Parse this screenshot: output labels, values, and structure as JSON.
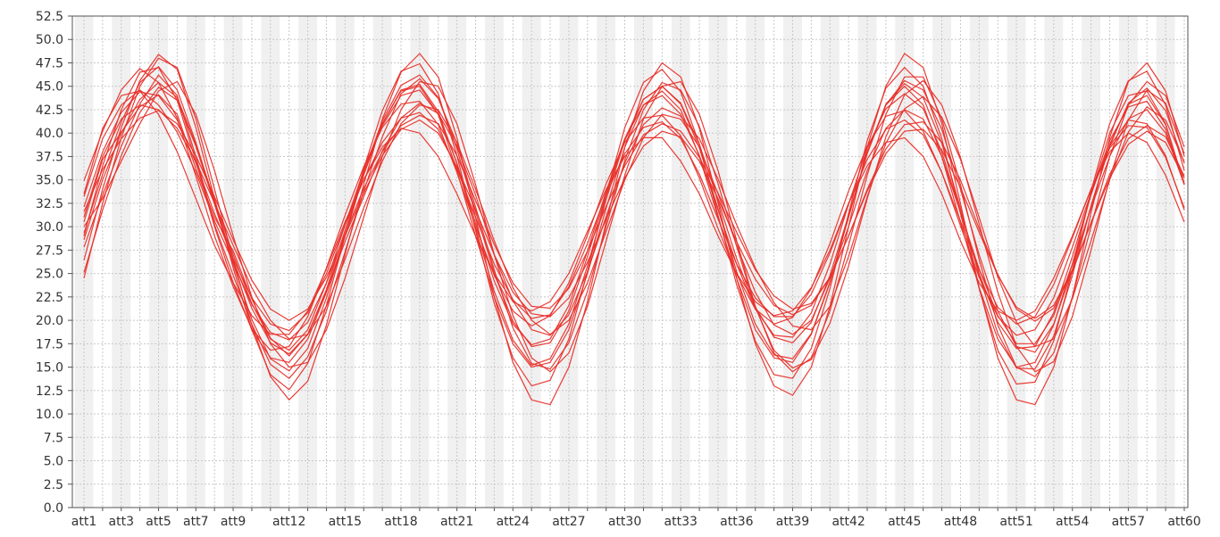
{
  "chart_data": {
    "type": "line",
    "title": "",
    "xlabel": "",
    "ylabel": "",
    "categories": [
      "att1",
      "att2",
      "att3",
      "att4",
      "att5",
      "att6",
      "att7",
      "att8",
      "att9",
      "att10",
      "att11",
      "att12",
      "att13",
      "att14",
      "att15",
      "att16",
      "att17",
      "att18",
      "att19",
      "att20",
      "att21",
      "att22",
      "att23",
      "att24",
      "att25",
      "att26",
      "att27",
      "att28",
      "att29",
      "att30",
      "att31",
      "att32",
      "att33",
      "att34",
      "att35",
      "att36",
      "att37",
      "att38",
      "att39",
      "att40",
      "att41",
      "att42",
      "att43",
      "att44",
      "att45",
      "att46",
      "att47",
      "att48",
      "att49",
      "att50",
      "att51",
      "att52",
      "att53",
      "att54",
      "att55",
      "att56",
      "att57",
      "att58",
      "att59",
      "att60"
    ],
    "x_tick_labels": [
      "att1",
      "att3",
      "att5",
      "att7",
      "att9",
      "att12",
      "att15",
      "att18",
      "att21",
      "att24",
      "att27",
      "att30",
      "att33",
      "att36",
      "att39",
      "att42",
      "att45",
      "att48",
      "att51",
      "att54",
      "att57",
      "att60"
    ],
    "x_tick_label_positions": [
      1,
      3,
      5,
      7,
      9,
      12,
      15,
      18,
      21,
      24,
      27,
      30,
      33,
      36,
      39,
      42,
      45,
      48,
      51,
      54,
      57,
      60
    ],
    "y_ticks": [
      "0.0",
      "2.5",
      "5.0",
      "7.5",
      "10.0",
      "12.5",
      "15.0",
      "17.5",
      "20.0",
      "22.5",
      "25.0",
      "27.5",
      "30.0",
      "32.5",
      "35.0",
      "37.5",
      "40.0",
      "42.5",
      "45.0",
      "47.5",
      "50.0",
      "52.5"
    ],
    "ylim": [
      0,
      52.5
    ],
    "grid": true,
    "line_color": "#e8302a",
    "series": [
      {
        "values": [
          30.5,
          37.2,
          40.1,
          42.8,
          44.1,
          42.0,
          36.2,
          31.0,
          27.4,
          22.3,
          18.1,
          16.2,
          18.5,
          23.1,
          28.4,
          33.2,
          38.1,
          41.6,
          43.2,
          42.1,
          38.6,
          33.4,
          27.0,
          22.1,
          19.0,
          18.4,
          20.6,
          25.2,
          31.1,
          36.8,
          40.9,
          42.7,
          41.8,
          39.4,
          35.1,
          30.2,
          25.6,
          21.9,
          19.4,
          19.0,
          21.5,
          26.8,
          33.2,
          38.9,
          42.6,
          43.9,
          41.7,
          37.2,
          31.0,
          24.6,
          19.8,
          17.2,
          18.0,
          22.3,
          28.5,
          35.0,
          40.1,
          42.8,
          41.4,
          36.9
        ]
      },
      {
        "values": [
          27.8,
          33.4,
          38.6,
          43.1,
          46.2,
          44.0,
          37.5,
          30.2,
          24.8,
          19.6,
          15.3,
          13.8,
          16.1,
          21.0,
          27.3,
          33.8,
          39.6,
          44.2,
          45.8,
          43.7,
          38.9,
          32.1,
          25.4,
          19.2,
          15.4,
          14.8,
          17.6,
          23.1,
          30.0,
          37.1,
          42.5,
          45.4,
          44.6,
          40.7,
          34.6,
          27.9,
          21.4,
          16.8,
          14.9,
          15.8,
          19.7,
          25.8,
          33.0,
          39.6,
          44.1,
          45.6,
          43.0,
          37.4,
          30.3,
          23.0,
          17.2,
          14.5,
          15.6,
          20.4,
          27.5,
          35.2,
          41.4,
          44.6,
          43.2,
          37.8
        ]
      },
      {
        "values": [
          33.2,
          39.4,
          43.0,
          44.6,
          43.0,
          40.1,
          35.8,
          30.6,
          26.2,
          21.7,
          18.7,
          17.9,
          19.8,
          24.0,
          29.2,
          34.1,
          38.0,
          40.8,
          41.9,
          41.0,
          37.6,
          32.8,
          28.1,
          24.0,
          21.5,
          21.3,
          23.4,
          27.4,
          32.2,
          36.5,
          39.8,
          41.0,
          40.2,
          37.4,
          33.6,
          29.4,
          25.4,
          22.6,
          21.2,
          21.8,
          24.6,
          29.0,
          34.0,
          38.3,
          40.9,
          41.2,
          39.0,
          35.0,
          29.8,
          24.9,
          21.2,
          19.9,
          21.3,
          25.2,
          30.4,
          35.6,
          39.4,
          40.8,
          39.6,
          35.4
        ]
      },
      {
        "values": [
          25.1,
          31.8,
          37.6,
          42.2,
          44.9,
          43.5,
          38.6,
          32.4,
          26.0,
          20.1,
          15.9,
          14.6,
          17.0,
          22.4,
          29.1,
          35.6,
          41.0,
          44.6,
          45.2,
          42.3,
          36.7,
          29.8,
          23.1,
          17.9,
          15.2,
          15.9,
          19.6,
          25.8,
          32.9,
          39.2,
          43.6,
          45.0,
          43.1,
          38.4,
          31.9,
          25.2,
          19.6,
          16.3,
          15.9,
          18.6,
          24.1,
          31.0,
          37.9,
          43.1,
          45.3,
          43.8,
          38.9,
          32.0,
          24.8,
          18.6,
          14.9,
          14.8,
          18.3,
          24.8,
          32.2,
          38.8,
          43.1,
          44.0,
          40.9,
          34.6
        ]
      },
      {
        "values": [
          34.9,
          40.2,
          44.6,
          46.9,
          45.4,
          41.6,
          35.4,
          29.0,
          23.6,
          19.1,
          16.8,
          17.2,
          20.4,
          25.6,
          31.2,
          36.4,
          40.6,
          43.1,
          43.4,
          40.9,
          35.8,
          30.0,
          24.8,
          21.0,
          19.4,
          20.5,
          24.0,
          29.1,
          34.6,
          39.0,
          41.6,
          41.9,
          39.7,
          35.2,
          29.8,
          24.9,
          21.2,
          19.6,
          20.3,
          23.4,
          28.2,
          33.8,
          38.6,
          41.8,
          42.4,
          40.2,
          35.8,
          30.1,
          24.6,
          20.4,
          18.4,
          19.0,
          22.4,
          27.8,
          33.6,
          38.6,
          41.4,
          41.0,
          37.6,
          31.8
        ]
      },
      {
        "values": [
          29.3,
          35.6,
          41.2,
          45.4,
          47.1,
          44.6,
          39.0,
          32.6,
          26.4,
          21.3,
          17.6,
          16.4,
          18.5,
          23.3,
          29.6,
          35.9,
          41.3,
          45.1,
          46.2,
          43.8,
          38.3,
          31.6,
          25.0,
          19.9,
          17.2,
          17.6,
          21.0,
          26.8,
          33.4,
          39.4,
          43.6,
          45.0,
          43.2,
          38.8,
          32.8,
          26.6,
          21.4,
          18.2,
          17.6,
          19.8,
          24.8,
          31.2,
          37.8,
          43.0,
          45.6,
          44.6,
          40.4,
          34.0,
          27.0,
          21.0,
          17.2,
          16.6,
          19.6,
          25.4,
          32.2,
          38.6,
          43.2,
          44.8,
          42.4,
          36.8
        ]
      },
      {
        "values": [
          31.6,
          36.1,
          39.4,
          41.6,
          42.4,
          41.0,
          37.6,
          33.2,
          28.6,
          24.3,
          21.2,
          20.0,
          21.2,
          24.6,
          29.0,
          33.6,
          37.6,
          40.4,
          41.4,
          40.0,
          36.4,
          31.8,
          27.0,
          23.0,
          20.7,
          20.4,
          22.4,
          26.2,
          30.8,
          35.2,
          38.6,
          40.2,
          39.6,
          37.0,
          33.0,
          28.4,
          24.4,
          21.6,
          20.6,
          21.6,
          24.6,
          29.0,
          33.8,
          37.8,
          40.2,
          40.4,
          38.2,
          34.2,
          29.4,
          24.8,
          21.4,
          20.2,
          21.6,
          25.4,
          30.4,
          35.2,
          38.8,
          40.2,
          39.0,
          35.2
        ]
      },
      {
        "values": [
          26.4,
          34.0,
          40.6,
          45.6,
          48.4,
          46.8,
          40.6,
          33.0,
          25.6,
          19.0,
          14.2,
          12.6,
          15.4,
          21.6,
          29.0,
          36.2,
          42.4,
          46.6,
          47.4,
          44.2,
          37.6,
          29.6,
          21.8,
          16.0,
          13.0,
          13.6,
          18.0,
          25.2,
          33.4,
          40.6,
          45.4,
          46.8,
          44.4,
          38.8,
          31.2,
          23.8,
          17.8,
          14.2,
          13.8,
          17.0,
          23.4,
          31.4,
          39.2,
          44.8,
          47.0,
          45.0,
          39.4,
          31.4,
          23.4,
          16.8,
          13.2,
          13.4,
          17.8,
          25.4,
          33.8,
          41.0,
          45.6,
          46.6,
          43.0,
          36.0
        ]
      },
      {
        "values": [
          32.1,
          38.0,
          42.2,
          44.4,
          44.0,
          41.4,
          36.8,
          31.4,
          26.6,
          22.4,
          19.6,
          18.9,
          20.8,
          25.0,
          30.2,
          35.0,
          39.0,
          41.6,
          42.2,
          40.4,
          36.2,
          31.0,
          26.0,
          22.2,
          20.2,
          20.6,
          23.6,
          28.2,
          33.4,
          37.8,
          40.6,
          41.2,
          39.4,
          35.6,
          30.8,
          26.0,
          22.4,
          20.4,
          20.4,
          22.8,
          27.2,
          32.4,
          37.2,
          40.4,
          41.4,
          39.8,
          35.8,
          30.6,
          25.4,
          21.4,
          19.6,
          20.4,
          23.8,
          28.8,
          34.0,
          38.4,
          40.8,
          40.6,
          37.4,
          32.0
        ]
      },
      {
        "values": [
          28.6,
          35.0,
          40.0,
          43.6,
          45.4,
          43.8,
          38.8,
          32.8,
          27.0,
          21.8,
          18.0,
          16.8,
          19.0,
          24.0,
          30.2,
          36.0,
          40.8,
          44.0,
          44.6,
          42.0,
          36.8,
          30.4,
          24.2,
          19.6,
          17.4,
          18.0,
          21.6,
          27.4,
          33.8,
          39.4,
          43.0,
          44.0,
          42.0,
          37.6,
          31.8,
          26.0,
          21.2,
          18.4,
          18.2,
          20.8,
          26.0,
          32.4,
          38.4,
          42.6,
          44.2,
          42.6,
          38.0,
          31.6,
          25.0,
          19.8,
          17.0,
          17.2,
          20.8,
          26.8,
          33.4,
          39.2,
          42.8,
          43.4,
          40.4,
          34.6
        ]
      },
      {
        "values": [
          30.0,
          33.0,
          37.0,
          41.0,
          44.5,
          45.5,
          42.0,
          36.0,
          29.0,
          22.5,
          17.5,
          15.0,
          15.5,
          19.0,
          24.5,
          31.0,
          37.5,
          42.5,
          45.5,
          45.0,
          41.0,
          34.5,
          27.0,
          20.5,
          16.0,
          14.5,
          16.5,
          21.5,
          28.5,
          35.5,
          41.5,
          45.0,
          45.5,
          42.0,
          36.0,
          28.5,
          21.5,
          16.5,
          14.5,
          16.0,
          21.0,
          28.0,
          35.5,
          42.0,
          46.0,
          46.0,
          41.5,
          34.5,
          26.5,
          19.5,
          15.0,
          14.0,
          16.5,
          22.5,
          30.0,
          37.5,
          43.0,
          45.5,
          44.0,
          38.5
        ]
      },
      {
        "values": [
          33.5,
          40.5,
          44.0,
          44.5,
          42.0,
          38.0,
          33.0,
          28.0,
          24.0,
          20.5,
          18.5,
          18.5,
          21.0,
          25.5,
          30.5,
          35.0,
          38.5,
          40.5,
          40.0,
          37.5,
          33.5,
          29.0,
          25.0,
          22.0,
          21.0,
          22.0,
          25.0,
          29.5,
          34.0,
          37.5,
          39.5,
          39.5,
          37.0,
          33.5,
          29.0,
          25.0,
          22.0,
          20.5,
          21.0,
          23.5,
          27.5,
          32.5,
          36.5,
          39.0,
          39.5,
          37.5,
          33.5,
          28.5,
          24.0,
          21.0,
          20.0,
          21.0,
          24.5,
          29.0,
          34.0,
          38.0,
          40.0,
          39.0,
          35.5,
          30.5
        ]
      },
      {
        "values": [
          24.5,
          32.5,
          39.5,
          45.0,
          48.0,
          47.0,
          41.5,
          34.0,
          26.5,
          19.5,
          14.0,
          11.5,
          13.5,
          19.5,
          27.0,
          34.5,
          41.5,
          46.5,
          48.5,
          46.0,
          39.5,
          31.0,
          22.5,
          15.5,
          11.5,
          11.0,
          15.0,
          22.0,
          30.5,
          38.5,
          44.5,
          47.5,
          46.0,
          40.5,
          32.5,
          24.5,
          17.5,
          13.0,
          12.0,
          15.0,
          21.5,
          30.0,
          38.5,
          45.0,
          48.5,
          47.0,
          41.0,
          32.5,
          23.5,
          16.0,
          11.5,
          11.0,
          15.0,
          22.5,
          31.5,
          39.5,
          45.5,
          47.5,
          44.5,
          37.5
        ]
      },
      {
        "values": [
          31.0,
          37.5,
          41.5,
          43.0,
          42.5,
          40.5,
          37.0,
          32.5,
          28.0,
          23.5,
          20.0,
          18.0,
          18.5,
          21.5,
          26.5,
          32.0,
          37.0,
          41.0,
          43.0,
          42.5,
          39.0,
          34.0,
          28.5,
          23.5,
          20.0,
          18.5,
          20.0,
          24.0,
          29.5,
          35.0,
          39.5,
          42.0,
          41.5,
          38.5,
          33.5,
          28.0,
          23.0,
          19.5,
          18.5,
          20.0,
          24.5,
          30.0,
          36.0,
          40.5,
          42.5,
          41.5,
          37.5,
          31.5,
          25.5,
          20.5,
          17.5,
          17.5,
          20.5,
          26.0,
          32.0,
          37.5,
          41.5,
          42.5,
          40.0,
          34.5
        ]
      },
      {
        "values": [
          29.0,
          36.5,
          42.5,
          46.5,
          47.0,
          43.5,
          37.0,
          30.0,
          24.0,
          19.0,
          16.0,
          15.5,
          18.0,
          23.0,
          29.0,
          35.5,
          41.0,
          44.5,
          45.0,
          42.0,
          36.0,
          29.0,
          22.5,
          17.5,
          15.0,
          15.5,
          19.0,
          25.0,
          32.0,
          38.5,
          43.0,
          44.5,
          42.5,
          37.5,
          31.0,
          24.5,
          19.0,
          16.0,
          15.5,
          18.5,
          24.0,
          31.0,
          38.0,
          43.0,
          45.0,
          43.0,
          37.5,
          30.5,
          23.5,
          18.0,
          15.0,
          15.5,
          19.5,
          26.0,
          33.5,
          40.0,
          44.0,
          44.5,
          41.0,
          34.5
        ]
      }
    ]
  }
}
